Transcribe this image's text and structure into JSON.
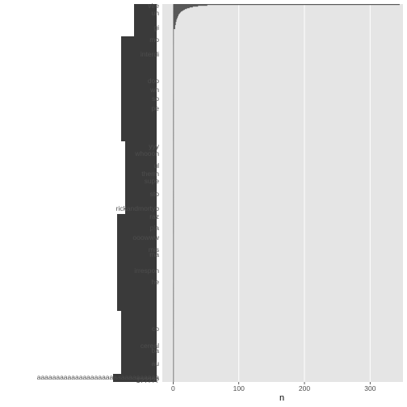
{
  "chart_data": {
    "type": "bar",
    "orientation": "horizontal",
    "xlabel": "n",
    "ylabel": "",
    "xlim": [
      0,
      350
    ],
    "x_ticks": [
      0,
      100,
      200,
      300
    ],
    "x_tick_labels": [
      "0",
      "100",
      "200",
      "300"
    ],
    "grid": true,
    "legend": "none",
    "bar_color": "#595959",
    "panel_color": "#e5e5e5",
    "top_values": [
      345,
      52,
      38,
      30,
      25,
      21,
      18,
      16,
      14,
      12,
      11,
      10,
      9,
      8,
      8,
      7,
      7,
      6,
      6,
      5,
      5,
      5,
      4,
      4,
      4,
      4,
      3,
      3,
      3,
      3,
      3
    ],
    "baseline_value": 1,
    "visible_category_labels": [
      "vire",
      "uh",
      "gi",
      "mo",
      "interdi",
      "doo",
      "wh",
      "so",
      "pe",
      "yyy",
      "whooon",
      "ul",
      "therm",
      "supe",
      "sto",
      "rickandmortyb",
      "raz",
      "pla",
      "ooowww",
      "mis",
      "ma",
      "irrespon",
      "he",
      "co",
      "cereal",
      "ba",
      "au",
      "1?????",
      "aaaaaaaaaaaaaaaaaaaaaaaaaaaaaaaa"
    ]
  }
}
